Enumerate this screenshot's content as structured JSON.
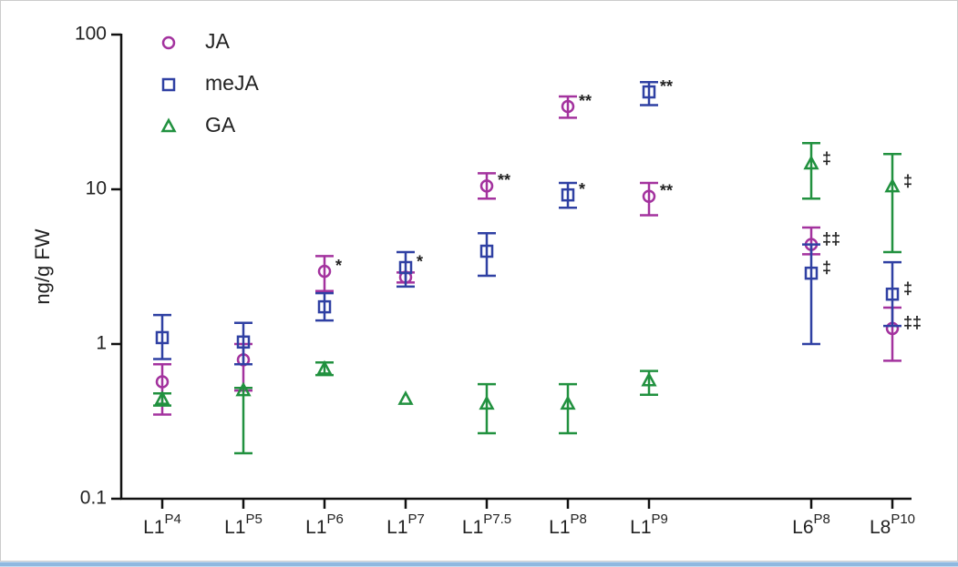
{
  "chart_data": {
    "type": "scatter",
    "ylabel": "ng/g FW",
    "log_scale": true,
    "legend": "upper-left",
    "categories": [
      {
        "main": "L1",
        "sup": "P4"
      },
      {
        "main": "L1",
        "sup": "P5"
      },
      {
        "main": "L1",
        "sup": "P6"
      },
      {
        "main": "L1",
        "sup": "P7"
      },
      {
        "main": "L1",
        "sup": "P7.5"
      },
      {
        "main": "L1",
        "sup": "P8"
      },
      {
        "main": "L1",
        "sup": "P9"
      },
      {
        "main": "L6",
        "sup": "P8"
      },
      {
        "main": "L8",
        "sup": "P10"
      }
    ],
    "ylim": [
      0.1,
      100
    ],
    "yticks": [
      0.1,
      1,
      10,
      100
    ],
    "series": [
      {
        "name": "JA",
        "color": "#a3329e",
        "marker": "circle",
        "values": [
          0.57,
          0.79,
          2.95,
          2.7,
          10.5,
          34.3,
          9.0,
          4.4,
          1.26
        ],
        "lower": [
          0.35,
          0.5,
          2.2,
          2.5,
          8.7,
          29,
          6.8,
          3.8,
          0.78
        ],
        "upper": [
          0.74,
          1.0,
          3.7,
          2.9,
          12.7,
          39.8,
          11,
          5.66,
          1.72
        ],
        "labels": [
          null,
          null,
          "*",
          null,
          "**",
          "**",
          "**",
          "‡‡",
          "‡‡"
        ]
      },
      {
        "name": "meJA",
        "color": "#2f40a3",
        "marker": "square",
        "values": [
          1.1,
          1.03,
          1.74,
          3.12,
          3.98,
          9.2,
          42.6,
          2.87,
          2.1
        ],
        "lower": [
          0.8,
          0.74,
          1.42,
          2.35,
          2.76,
          7.6,
          35,
          1.0,
          1.31
        ],
        "upper": [
          1.54,
          1.37,
          2.13,
          3.93,
          5.2,
          11,
          49.3,
          4.4,
          3.38
        ],
        "labels": [
          null,
          null,
          null,
          "*",
          null,
          "*",
          "**",
          "‡",
          "‡"
        ]
      },
      {
        "name": "GA",
        "color": "#21913f",
        "marker": "triangle",
        "values": [
          0.44,
          0.5,
          0.69,
          0.44,
          0.41,
          0.41,
          0.58,
          14.6,
          10.4
        ],
        "lower": [
          0.4,
          0.197,
          0.63,
          null,
          0.265,
          0.265,
          0.47,
          8.7,
          3.93
        ],
        "upper": [
          0.48,
          0.52,
          0.76,
          null,
          0.55,
          0.55,
          0.67,
          19.9,
          16.9
        ],
        "labels": [
          null,
          null,
          null,
          null,
          null,
          null,
          null,
          "‡",
          "‡"
        ]
      }
    ]
  }
}
